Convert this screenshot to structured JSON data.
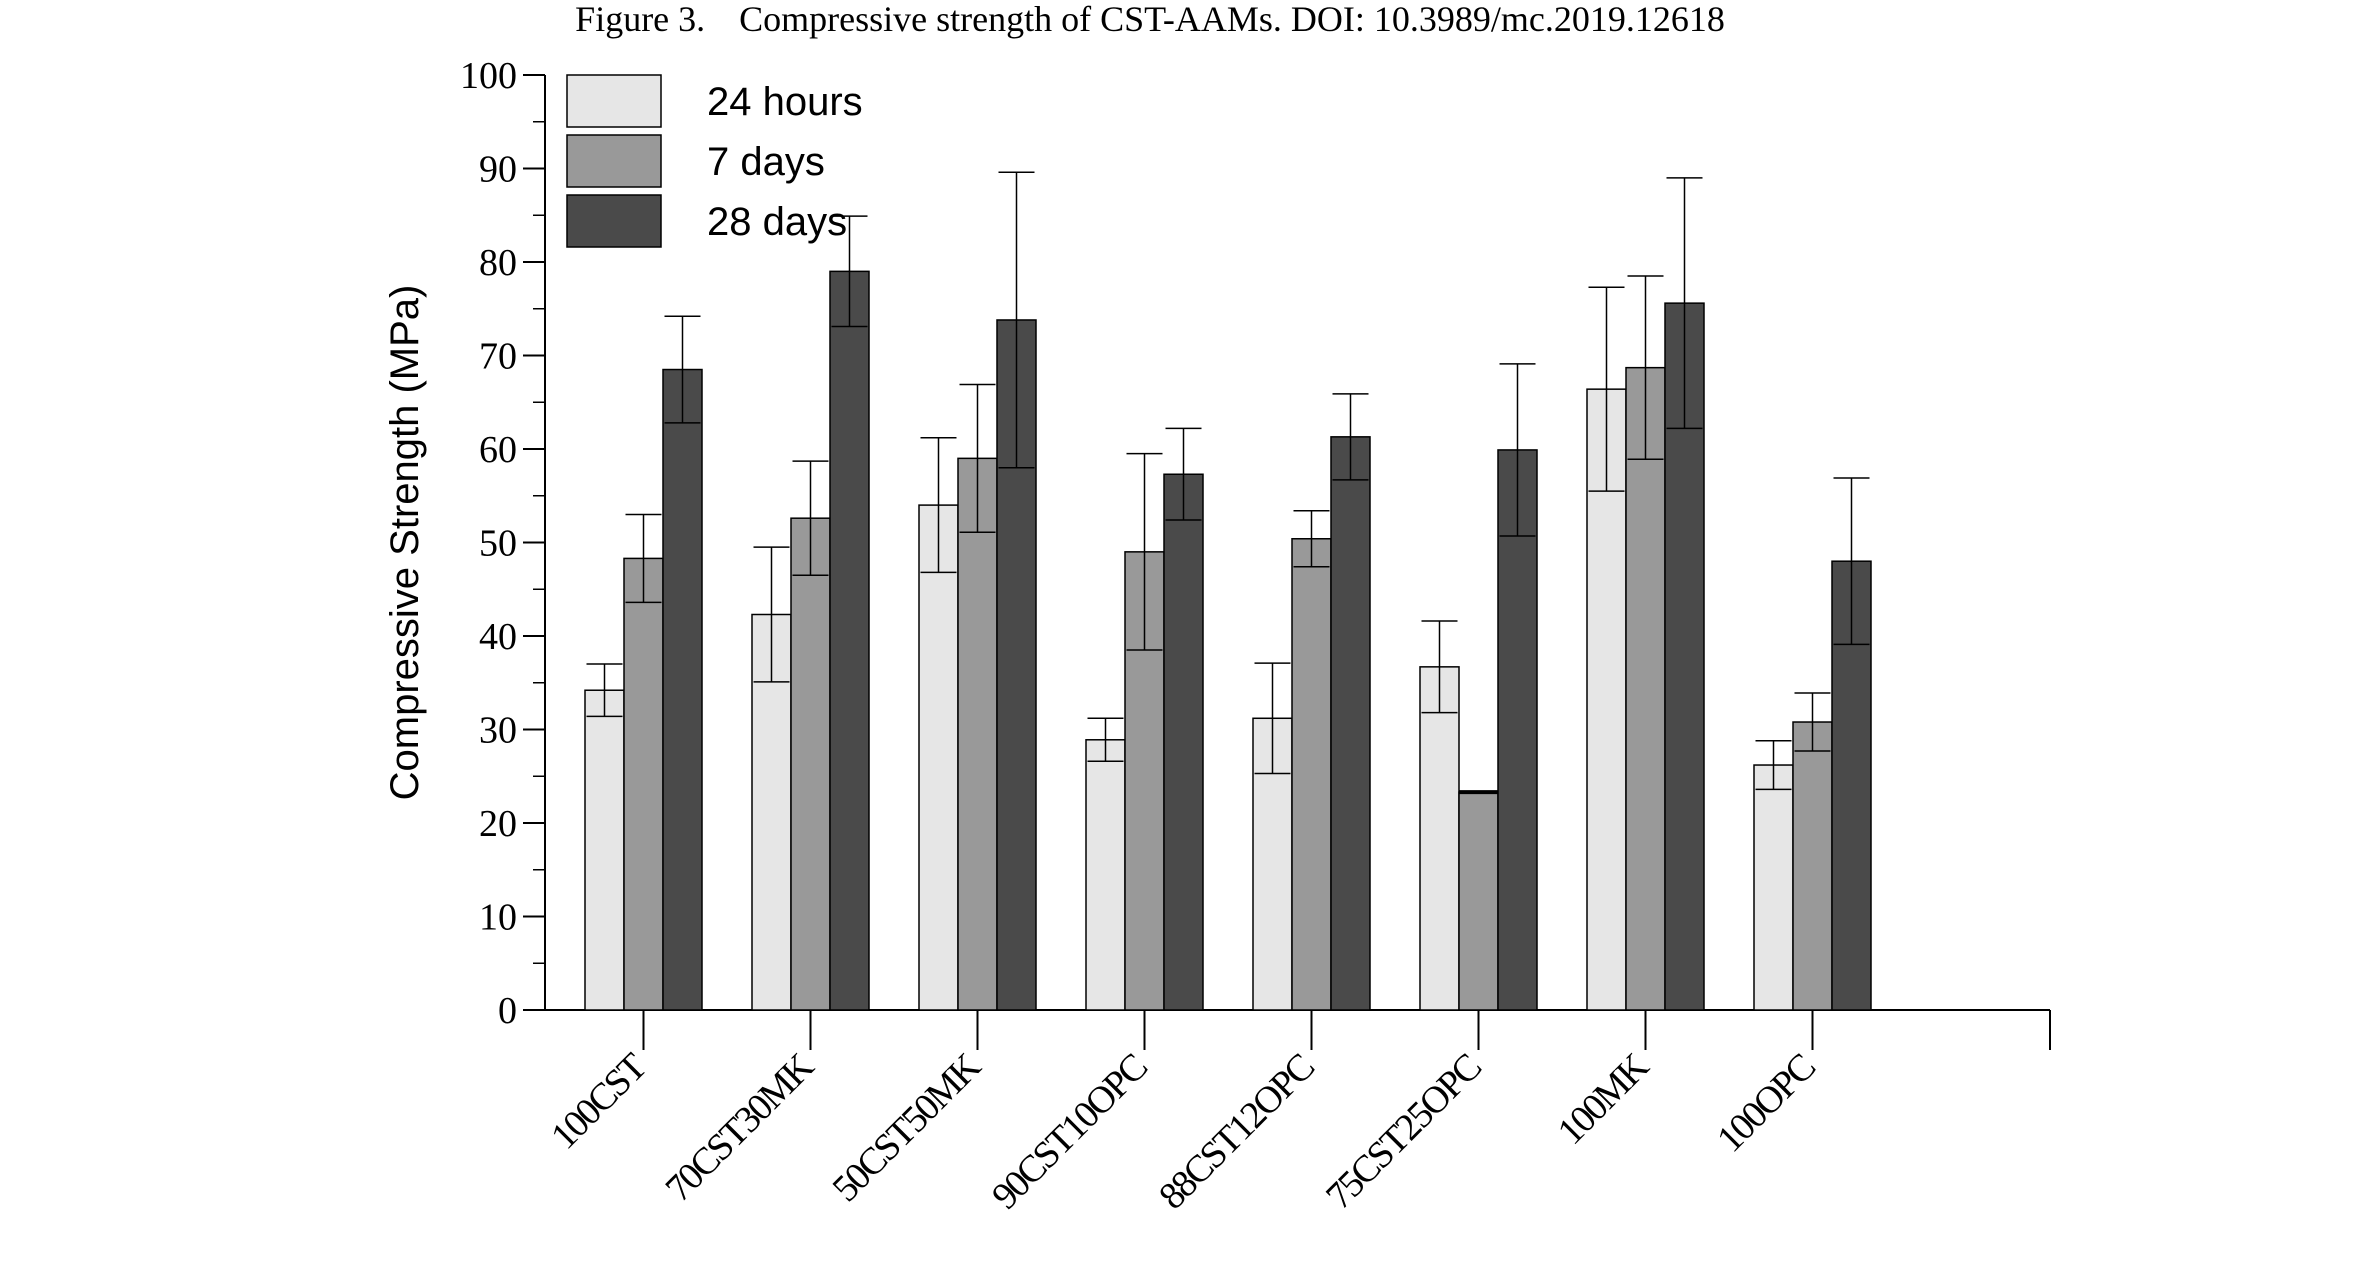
{
  "caption": {
    "figure_label": "Figure 3.",
    "text": "Compressive strength of CST-AAMs. DOI: 10.3989/mc.2019.12618"
  },
  "colors": {
    "24 hours": "#e6e6e6",
    "7 days": "#999999",
    "28 days": "#4a4a4a",
    "axis": "#000000"
  },
  "chart_data": {
    "type": "bar",
    "title": "",
    "xlabel": "",
    "ylabel": "Compressive Strength (MPa)",
    "ylim": [
      0,
      100
    ],
    "yticks": [
      0,
      10,
      20,
      30,
      40,
      50,
      60,
      70,
      80,
      90,
      100
    ],
    "grid": false,
    "legend_position": "top-left",
    "categories": [
      "100CST",
      "70CST30MK",
      "50CST50MK",
      "90CST10OPC",
      "88CST12OPC",
      "75CST25OPC",
      "100MK",
      "100OPC"
    ],
    "series": [
      {
        "name": "24 hours",
        "values": [
          34.2,
          42.3,
          54.0,
          28.9,
          31.2,
          36.7,
          66.4,
          26.2
        ],
        "error": [
          2.8,
          7.2,
          7.2,
          2.3,
          5.9,
          4.9,
          10.9,
          2.6
        ]
      },
      {
        "name": "7 days",
        "values": [
          48.3,
          52.6,
          59.0,
          49.0,
          50.4,
          23.3,
          68.7,
          30.8
        ],
        "error": [
          4.7,
          6.1,
          7.9,
          10.5,
          3.0,
          0.0,
          9.8,
          3.1
        ]
      },
      {
        "name": "28 days",
        "values": [
          68.5,
          79.0,
          73.8,
          57.3,
          61.3,
          59.9,
          75.6,
          48.0
        ],
        "error": [
          5.7,
          5.9,
          15.8,
          4.9,
          4.6,
          9.2,
          13.4,
          8.9
        ]
      }
    ]
  }
}
